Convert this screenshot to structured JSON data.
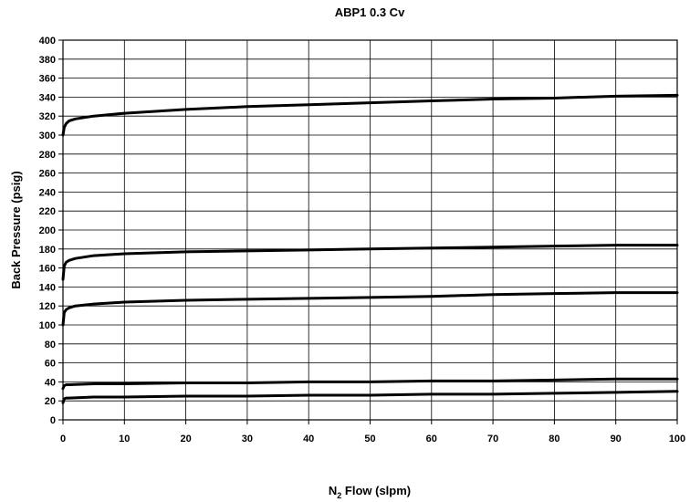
{
  "chart_data": {
    "type": "line",
    "title": "ABP1 0.3 Cv",
    "xlabel_main": "N",
    "xlabel_sub": "2",
    "xlabel_rest": " Flow (slpm)",
    "ylabel": "Back Pressure (psig)",
    "xlim": [
      0,
      100
    ],
    "ylim": [
      0,
      400
    ],
    "x_ticks": [
      "0",
      "10",
      "20",
      "30",
      "40",
      "50",
      "60",
      "70",
      "80",
      "90",
      "100"
    ],
    "y_ticks": [
      "0",
      "20",
      "40",
      "60",
      "80",
      "100",
      "120",
      "140",
      "160",
      "180",
      "200",
      "220",
      "240",
      "260",
      "280",
      "300",
      "320",
      "340",
      "360",
      "380",
      "400"
    ],
    "grid": true,
    "series": [
      {
        "x": [
          0,
          0.2,
          0.5,
          1,
          2,
          5,
          10,
          20,
          30,
          40,
          50,
          60,
          70,
          80,
          90,
          100
        ],
        "y": [
          300,
          308,
          312,
          315,
          317,
          320,
          323,
          327,
          330,
          332,
          334,
          336,
          338,
          339,
          341,
          342
        ]
      },
      {
        "x": [
          0,
          0.2,
          0.5,
          1,
          2,
          5,
          10,
          20,
          30,
          40,
          50,
          60,
          70,
          80,
          90,
          100
        ],
        "y": [
          148,
          162,
          166,
          168,
          170,
          173,
          175,
          177,
          178,
          179,
          180,
          181,
          182,
          183,
          184,
          184
        ]
      },
      {
        "x": [
          0,
          0.2,
          0.5,
          1,
          2,
          5,
          10,
          20,
          30,
          40,
          50,
          60,
          70,
          80,
          90,
          100
        ],
        "y": [
          100,
          113,
          116,
          118,
          120,
          122,
          124,
          126,
          127,
          128,
          129,
          130,
          132,
          133,
          134,
          134
        ]
      },
      {
        "x": [
          0,
          0.2,
          0.5,
          1,
          5,
          10,
          20,
          30,
          40,
          50,
          60,
          70,
          80,
          90,
          100
        ],
        "y": [
          33,
          36,
          37,
          37,
          38,
          38,
          39,
          39,
          40,
          40,
          41,
          41,
          42,
          43,
          43
        ]
      },
      {
        "x": [
          0,
          0.2,
          0.5,
          1,
          5,
          10,
          20,
          30,
          40,
          50,
          60,
          70,
          80,
          90,
          100
        ],
        "y": [
          18,
          22,
          23,
          23,
          24,
          24,
          25,
          25,
          26,
          26,
          27,
          27,
          28,
          29,
          30
        ]
      }
    ],
    "colors": {
      "line": "#000000",
      "grid": "#000000",
      "background": "#ffffff"
    }
  }
}
